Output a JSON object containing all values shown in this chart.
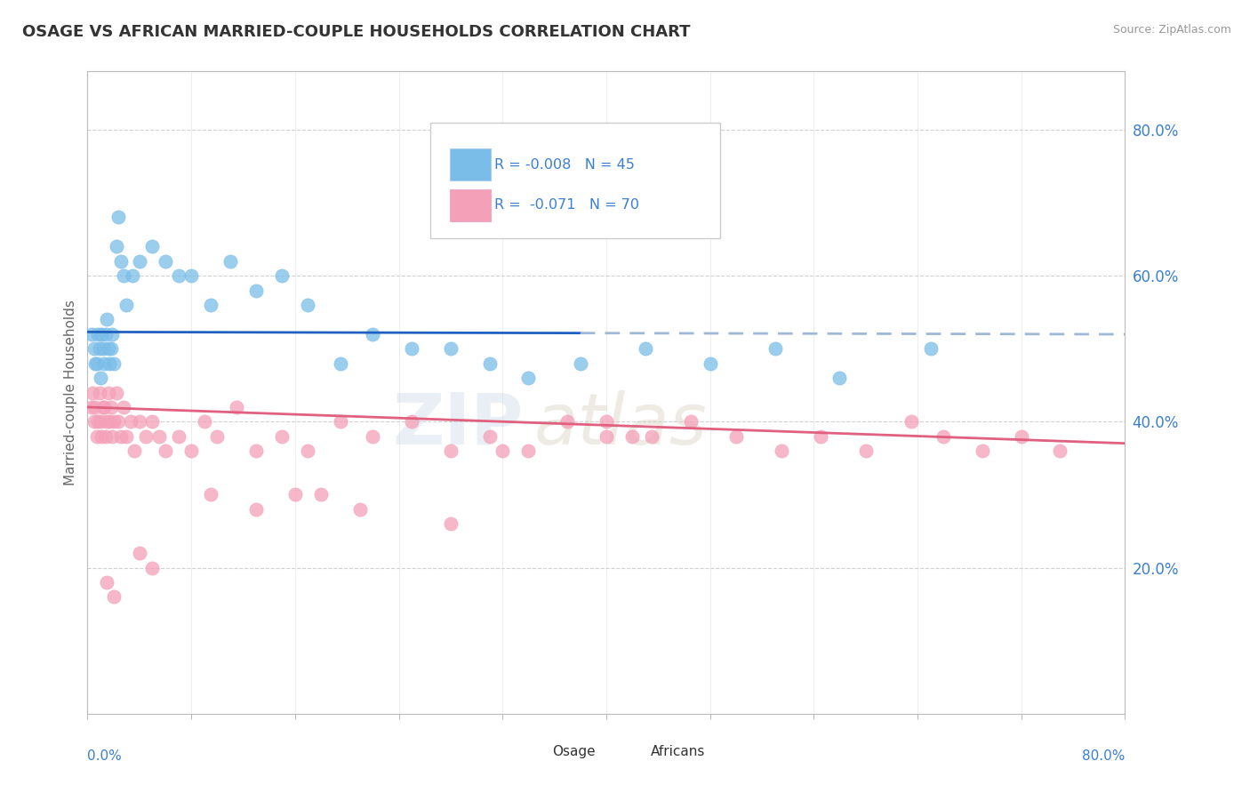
{
  "title": "OSAGE VS AFRICAN MARRIED-COUPLE HOUSEHOLDS CORRELATION CHART",
  "source": "Source: ZipAtlas.com",
  "ylabel": "Married-couple Households",
  "R_osage": -0.008,
  "N_osage": 45,
  "R_african": -0.071,
  "N_african": 70,
  "color_osage": "#7abde8",
  "color_african": "#f4a0b8",
  "trendline_osage_solid": "#2060c0",
  "trendline_osage_dashed": "#a0b8d8",
  "trendline_african": "#e06080",
  "background": "#ffffff",
  "grid_color": "#cccccc",
  "yticks": [
    0.2,
    0.4,
    0.6,
    0.8
  ],
  "ytick_labels": [
    "20.0%",
    "40.0%",
    "60.0%",
    "80.0%"
  ],
  "xlim": [
    0.0,
    0.8
  ],
  "ylim": [
    0.0,
    0.88
  ],
  "axis_label_color": "#3a7fd5",
  "legend_text_color": "#3a7fd5",
  "title_color": "#333333",
  "osage_trend_y0": 0.523,
  "osage_trend_slope": -0.004,
  "osage_trend_solid_end": 0.38,
  "african_trend_y0": 0.42,
  "african_trend_slope": -0.062,
  "osage_x": [
    0.003,
    0.005,
    0.006,
    0.007,
    0.008,
    0.009,
    0.01,
    0.011,
    0.012,
    0.013,
    0.014,
    0.015,
    0.016,
    0.017,
    0.018,
    0.019,
    0.02,
    0.022,
    0.024,
    0.026,
    0.028,
    0.03,
    0.035,
    0.04,
    0.05,
    0.06,
    0.07,
    0.08,
    0.095,
    0.11,
    0.13,
    0.15,
    0.17,
    0.195,
    0.22,
    0.25,
    0.28,
    0.31,
    0.34,
    0.38,
    0.43,
    0.48,
    0.53,
    0.58,
    0.65
  ],
  "osage_y": [
    0.52,
    0.5,
    0.48,
    0.48,
    0.52,
    0.5,
    0.46,
    0.52,
    0.5,
    0.48,
    0.52,
    0.54,
    0.5,
    0.48,
    0.5,
    0.52,
    0.48,
    0.64,
    0.68,
    0.62,
    0.6,
    0.56,
    0.6,
    0.62,
    0.64,
    0.62,
    0.6,
    0.6,
    0.56,
    0.62,
    0.58,
    0.6,
    0.56,
    0.48,
    0.52,
    0.5,
    0.5,
    0.48,
    0.46,
    0.48,
    0.5,
    0.48,
    0.5,
    0.46,
    0.5
  ],
  "african_x": [
    0.003,
    0.004,
    0.005,
    0.006,
    0.007,
    0.008,
    0.009,
    0.01,
    0.011,
    0.012,
    0.013,
    0.014,
    0.015,
    0.016,
    0.017,
    0.018,
    0.019,
    0.02,
    0.022,
    0.024,
    0.026,
    0.028,
    0.03,
    0.033,
    0.036,
    0.04,
    0.045,
    0.05,
    0.055,
    0.06,
    0.07,
    0.08,
    0.09,
    0.1,
    0.115,
    0.13,
    0.15,
    0.17,
    0.195,
    0.22,
    0.25,
    0.28,
    0.31,
    0.34,
    0.37,
    0.4,
    0.435,
    0.465,
    0.5,
    0.535,
    0.565,
    0.6,
    0.635,
    0.66,
    0.69,
    0.72,
    0.75,
    0.4,
    0.42,
    0.32,
    0.18,
    0.21,
    0.28,
    0.095,
    0.13,
    0.16,
    0.05,
    0.04,
    0.02,
    0.015
  ],
  "african_y": [
    0.42,
    0.44,
    0.4,
    0.42,
    0.38,
    0.4,
    0.44,
    0.4,
    0.38,
    0.42,
    0.42,
    0.38,
    0.4,
    0.44,
    0.4,
    0.42,
    0.38,
    0.4,
    0.44,
    0.4,
    0.38,
    0.42,
    0.38,
    0.4,
    0.36,
    0.4,
    0.38,
    0.4,
    0.38,
    0.36,
    0.38,
    0.36,
    0.4,
    0.38,
    0.42,
    0.36,
    0.38,
    0.36,
    0.4,
    0.38,
    0.4,
    0.36,
    0.38,
    0.36,
    0.4,
    0.38,
    0.38,
    0.4,
    0.38,
    0.36,
    0.38,
    0.36,
    0.4,
    0.38,
    0.36,
    0.38,
    0.36,
    0.4,
    0.38,
    0.36,
    0.3,
    0.28,
    0.26,
    0.3,
    0.28,
    0.3,
    0.2,
    0.22,
    0.16,
    0.18
  ]
}
